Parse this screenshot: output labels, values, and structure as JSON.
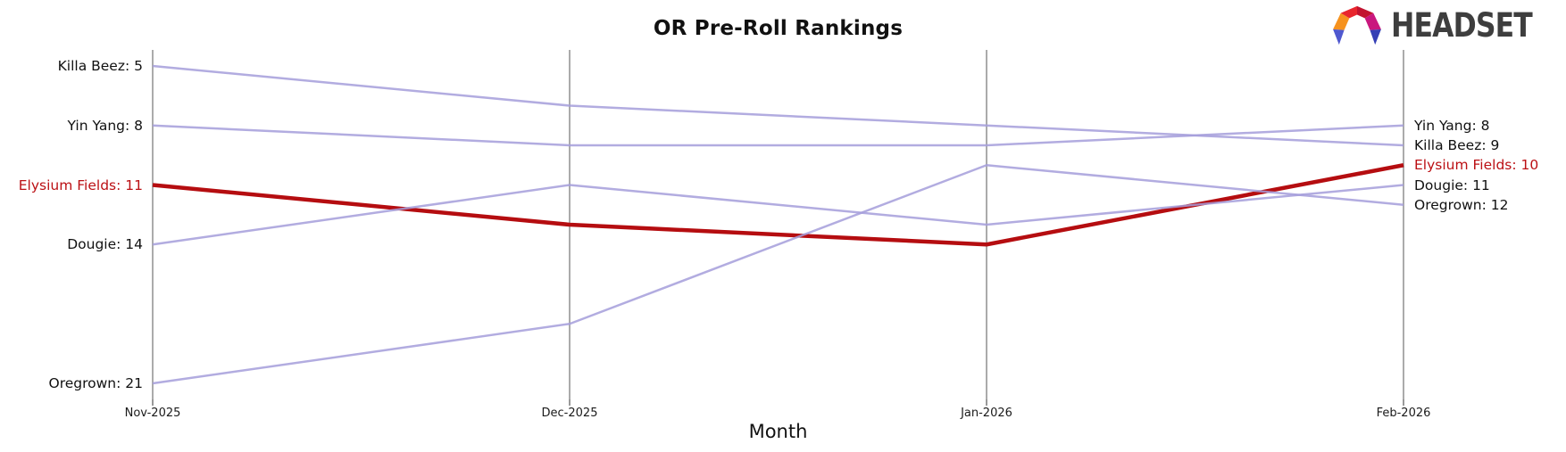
{
  "title": "OR Pre-Roll Rankings",
  "xlabel": "Month",
  "logo": {
    "brand": "HEADSET",
    "text_color": "#3e3e3e",
    "colors": {
      "orange": "#F6921E",
      "red": "#E8262D",
      "crimson": "#C21330",
      "magenta": "#C9177E",
      "blue_left": "#4F58CF",
      "blue_right": "#353FB5"
    }
  },
  "chart_data": {
    "type": "line",
    "subtype": "bump-ranking",
    "title": "OR Pre-Roll Rankings",
    "xlabel": "Month",
    "grid": false,
    "legend": "none (endpoint labels on left and right axes)",
    "y_axis": {
      "metric": "rank",
      "inverted": true,
      "ylim": [
        4.2,
        21.8
      ]
    },
    "axis_color": "#ababab",
    "tick_color": "#777777",
    "categories": [
      "Nov-2025",
      "Dec-2025",
      "Jan-2026",
      "Feb-2026"
    ],
    "series": [
      {
        "name": "Killa Beez",
        "values": [
          5,
          7,
          8,
          9
        ],
        "color": "#a49edb",
        "width": 2.5,
        "opacity": 0.85
      },
      {
        "name": "Yin Yang",
        "values": [
          8,
          9,
          9,
          8
        ],
        "color": "#a49edb",
        "width": 2.5,
        "opacity": 0.85
      },
      {
        "name": "Elysium Fields",
        "values": [
          11,
          13,
          14,
          10
        ],
        "color": "#b50d10",
        "width": 4.5,
        "opacity": 1,
        "highlight": true
      },
      {
        "name": "Dougie",
        "values": [
          14,
          11,
          13,
          11
        ],
        "color": "#a49edb",
        "width": 2.5,
        "opacity": 0.85
      },
      {
        "name": "Oregrown",
        "values": [
          21,
          18,
          10,
          12
        ],
        "color": "#a49edb",
        "width": 2.5,
        "opacity": 0.85
      }
    ],
    "left_labels": [
      {
        "text": "Killa Beez: 5",
        "rank": 5,
        "color": "#111111"
      },
      {
        "text": "Yin Yang: 8",
        "rank": 8,
        "color": "#111111"
      },
      {
        "text": "Elysium Fields: 11",
        "rank": 11,
        "color": "#bb1014"
      },
      {
        "text": "Dougie: 14",
        "rank": 14,
        "color": "#111111"
      },
      {
        "text": "Oregrown: 21",
        "rank": 21,
        "color": "#111111"
      }
    ],
    "right_labels": [
      {
        "text": "Yin Yang: 8",
        "rank": 8,
        "color": "#111111"
      },
      {
        "text": "Killa Beez: 9",
        "rank": 9,
        "color": "#111111"
      },
      {
        "text": "Elysium Fields: 10",
        "rank": 10,
        "color": "#bb1014"
      },
      {
        "text": "Dougie: 11",
        "rank": 11,
        "color": "#111111"
      },
      {
        "text": "Oregrown: 12",
        "rank": 12,
        "color": "#111111"
      }
    ]
  }
}
